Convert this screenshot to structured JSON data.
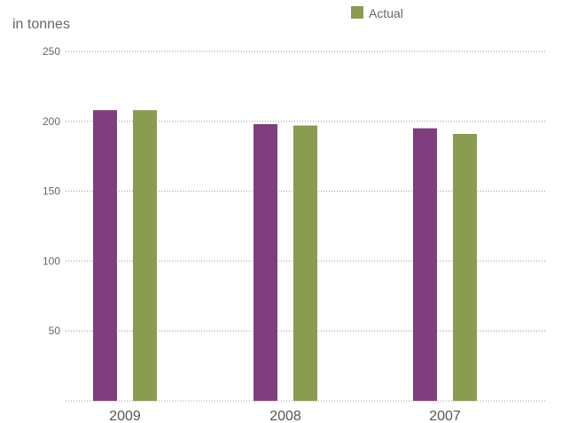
{
  "chart_data": {
    "type": "bar",
    "ylabel": "in tonnes",
    "categories": [
      "2009",
      "2008",
      "2007"
    ],
    "series": [
      {
        "values": [
          208,
          198,
          195
        ],
        "color": "#7f3f7e"
      },
      {
        "name": "Actual",
        "values": [
          208,
          197,
          191
        ],
        "color": "#8a9b52"
      }
    ],
    "ylim": [
      0,
      250
    ],
    "yticks": [
      50,
      100,
      150,
      200,
      250
    ],
    "grid": true,
    "legend_position": "top-center"
  }
}
